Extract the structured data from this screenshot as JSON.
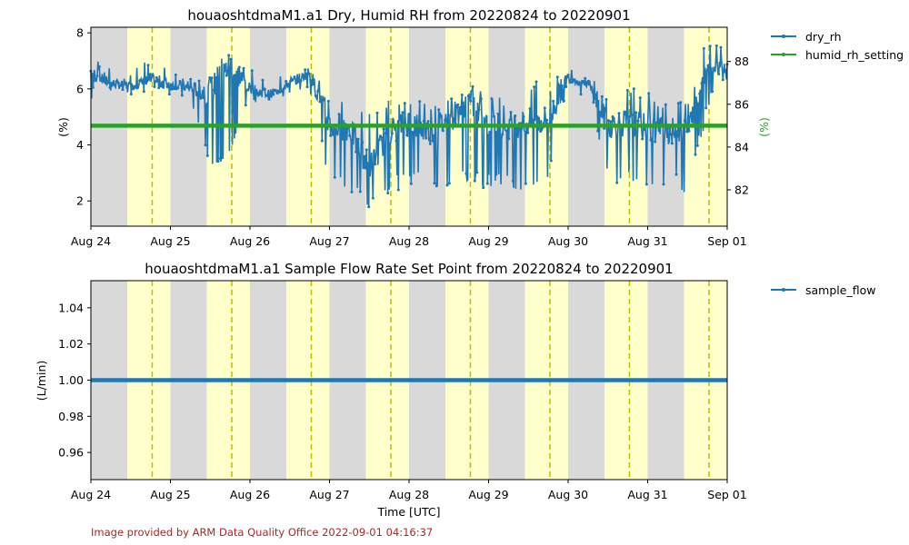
{
  "footer": "Image provided by ARM Data Quality Office 2022-09-01 04:16:37",
  "colors": {
    "night": "#d9d9d9",
    "day": "#ffffcc",
    "noon_line": "#bfbf00",
    "series_blue": "#1f77b4",
    "series_green": "#2ca02c",
    "right_axis_label": "#2ca02c",
    "footer": "#a52a2a"
  },
  "chart_data": [
    {
      "type": "line",
      "title": "houaoshtdmaM1.a1 Dry, Humid RH from 20220824 to 20220901",
      "xlabel": "",
      "ylabel": "(%)",
      "y2label": "(%)",
      "x_range": [
        "2022-08-24",
        "2022-09-01"
      ],
      "x_ticks": [
        "Aug 24",
        "Aug 25",
        "Aug 26",
        "Aug 27",
        "Aug 28",
        "Aug 29",
        "Aug 30",
        "Aug 31",
        "Sep 01"
      ],
      "ylim": [
        1.1,
        8.2
      ],
      "y_ticks": [
        "2",
        "4",
        "6",
        "8"
      ],
      "y2lim": [
        80.3,
        89.6
      ],
      "y2_ticks": [
        "82",
        "84",
        "86",
        "88"
      ],
      "daylight_utc_hours": [
        11.0,
        24.0
      ],
      "solar_noon_utc_hour": 18.5,
      "legend_position": "outside-right",
      "series": [
        {
          "name": "dry_rh",
          "axis": "left",
          "style": "line-with-markers",
          "color": "#1f77b4",
          "values_desc": "approx. daily envelope (day offset, typical value, low excursion, high excursion)",
          "points": [
            [
              0.0,
              6.6,
              5.5,
              7.1
            ],
            [
              0.25,
              6.2,
              5.7,
              6.8
            ],
            [
              0.5,
              6.1,
              5.8,
              6.5
            ],
            [
              0.75,
              6.3,
              5.9,
              7.3
            ],
            [
              1.0,
              6.2,
              5.7,
              6.9
            ],
            [
              1.25,
              6.0,
              5.6,
              6.5
            ],
            [
              1.5,
              5.9,
              3.1,
              6.4
            ],
            [
              1.75,
              6.9,
              3.5,
              7.8
            ],
            [
              2.0,
              6.0,
              5.6,
              6.7
            ],
            [
              2.25,
              5.8,
              5.3,
              6.3
            ],
            [
              2.5,
              6.2,
              5.8,
              6.7
            ],
            [
              2.75,
              6.6,
              5.9,
              7.1
            ],
            [
              3.0,
              4.7,
              2.4,
              5.6
            ],
            [
              3.25,
              4.6,
              2.3,
              5.5
            ],
            [
              3.5,
              3.2,
              1.4,
              5.2
            ],
            [
              3.75,
              4.5,
              2.2,
              5.8
            ],
            [
              4.0,
              4.8,
              2.6,
              5.7
            ],
            [
              4.25,
              4.5,
              2.4,
              5.6
            ],
            [
              4.5,
              4.9,
              2.5,
              5.6
            ],
            [
              4.75,
              5.6,
              2.6,
              6.5
            ],
            [
              5.0,
              4.8,
              2.4,
              5.7
            ],
            [
              5.25,
              4.7,
              2.5,
              5.8
            ],
            [
              5.5,
              4.8,
              2.3,
              6.4
            ],
            [
              5.75,
              4.9,
              2.6,
              6.2
            ],
            [
              6.0,
              6.4,
              5.9,
              6.8
            ],
            [
              6.25,
              6.2,
              5.7,
              6.6
            ],
            [
              6.5,
              4.7,
              2.7,
              5.8
            ],
            [
              6.75,
              4.8,
              2.5,
              6.3
            ],
            [
              7.0,
              4.6,
              2.4,
              5.9
            ],
            [
              7.25,
              4.5,
              2.5,
              5.4
            ],
            [
              7.5,
              4.4,
              2.2,
              5.6
            ],
            [
              7.75,
              6.9,
              5.1,
              7.9
            ],
            [
              8.0,
              6.8,
              6.2,
              7.3
            ]
          ]
        },
        {
          "name": "humid_rh_setting",
          "axis": "right",
          "style": "thick-line",
          "color": "#2ca02c",
          "value": 85.0
        }
      ]
    },
    {
      "type": "line",
      "title": "houaoshtdmaM1.a1 Sample Flow Rate Set Point from 20220824 to 20220901",
      "xlabel": "Time [UTC]",
      "ylabel": "(L/min)",
      "x_range": [
        "2022-08-24",
        "2022-09-01"
      ],
      "x_ticks": [
        "Aug 24",
        "Aug 25",
        "Aug 26",
        "Aug 27",
        "Aug 28",
        "Aug 29",
        "Aug 30",
        "Aug 31",
        "Sep 01"
      ],
      "ylim": [
        0.945,
        1.055
      ],
      "y_ticks": [
        "0.96",
        "0.98",
        "1.00",
        "1.02",
        "1.04"
      ],
      "daylight_utc_hours": [
        11.0,
        24.0
      ],
      "solar_noon_utc_hour": 18.5,
      "legend_position": "outside-right",
      "series": [
        {
          "name": "sample_flow",
          "axis": "left",
          "style": "thick-line",
          "color": "#1f77b4",
          "value": 1.0
        }
      ]
    }
  ]
}
